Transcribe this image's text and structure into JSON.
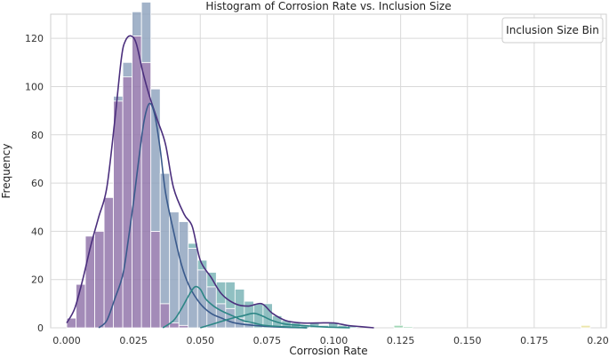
{
  "chart_data": {
    "type": "histogram",
    "title": "Histogram of Corrosion Rate vs. Inclusion Size",
    "xlabel": "Corrosion Rate",
    "ylabel": "Frequency",
    "xlim": [
      -0.006,
      0.202
    ],
    "ylim": [
      0,
      130
    ],
    "x_ticks": [
      0.0,
      0.025,
      0.05,
      0.075,
      0.1,
      0.125,
      0.15,
      0.175,
      0.2
    ],
    "x_tick_labels": [
      "0.000",
      "0.025",
      "0.050",
      "0.075",
      "0.100",
      "0.125",
      "0.150",
      "0.175",
      "0.200"
    ],
    "y_ticks": [
      0,
      20,
      40,
      60,
      80,
      100,
      120
    ],
    "y_tick_labels": [
      "0",
      "20",
      "40",
      "60",
      "80",
      "100",
      "120"
    ],
    "grid": true,
    "legend": {
      "title": "Inclusion Size Bin",
      "placement": "top-right",
      "entries": []
    },
    "bin_width": 0.0035,
    "stacked": true,
    "colors": {
      "purple": "#8f72a8",
      "blue": "#8ea2bd",
      "teal": "#77b2b4",
      "green": "#8fd0a8",
      "yellow": "#e8e09a",
      "kde_purple": "#4b2f7d",
      "kde_blue": "#3a5a8c",
      "kde_teal": "#2d8686"
    },
    "series": [
      {
        "color_key": "purple",
        "kde_color_key": "kde_purple",
        "bins": [
          [
            0.0,
            4
          ],
          [
            0.0035,
            18
          ],
          [
            0.007,
            38
          ],
          [
            0.0105,
            40
          ],
          [
            0.014,
            54
          ],
          [
            0.0175,
            94
          ],
          [
            0.021,
            104
          ],
          [
            0.0245,
            121
          ],
          [
            0.028,
            110
          ],
          [
            0.0315,
            40
          ],
          [
            0.035,
            10
          ],
          [
            0.0385,
            2
          ],
          [
            0.042,
            1
          ]
        ],
        "kde": [
          [
            0.0,
            2
          ],
          [
            0.003,
            8
          ],
          [
            0.006,
            20
          ],
          [
            0.009,
            34
          ],
          [
            0.012,
            46
          ],
          [
            0.015,
            58
          ],
          [
            0.018,
            86
          ],
          [
            0.0205,
            112
          ],
          [
            0.022,
            119
          ],
          [
            0.024,
            121
          ],
          [
            0.026,
            118
          ],
          [
            0.0285,
            106
          ],
          [
            0.031,
            96
          ],
          [
            0.034,
            86
          ],
          [
            0.037,
            76
          ],
          [
            0.04,
            58
          ],
          [
            0.044,
            47
          ],
          [
            0.047,
            42
          ],
          [
            0.05,
            28
          ],
          [
            0.054,
            21
          ],
          [
            0.058,
            14
          ],
          [
            0.063,
            10
          ],
          [
            0.068,
            9
          ],
          [
            0.073,
            10
          ],
          [
            0.077,
            6
          ],
          [
            0.082,
            3
          ],
          [
            0.088,
            2
          ],
          [
            0.094,
            2
          ],
          [
            0.1,
            2
          ],
          [
            0.105,
            1
          ],
          [
            0.11,
            0.5
          ],
          [
            0.115,
            0
          ]
        ]
      },
      {
        "color_key": "blue",
        "kde_color_key": "kde_blue",
        "bins": [
          [
            0.0175,
            2
          ],
          [
            0.021,
            6
          ],
          [
            0.0245,
            10
          ],
          [
            0.028,
            25
          ],
          [
            0.0315,
            59
          ],
          [
            0.035,
            54
          ],
          [
            0.0385,
            46
          ],
          [
            0.042,
            43
          ],
          [
            0.0455,
            33
          ],
          [
            0.049,
            24
          ],
          [
            0.0525,
            17
          ],
          [
            0.056,
            10
          ],
          [
            0.0595,
            8
          ],
          [
            0.063,
            4
          ],
          [
            0.0665,
            2
          ]
        ],
        "kde": [
          [
            0.012,
            0
          ],
          [
            0.015,
            3
          ],
          [
            0.018,
            12
          ],
          [
            0.021,
            22
          ],
          [
            0.023,
            36
          ],
          [
            0.025,
            52
          ],
          [
            0.027,
            70
          ],
          [
            0.029,
            86
          ],
          [
            0.031,
            93
          ],
          [
            0.033,
            88
          ],
          [
            0.035,
            74
          ],
          [
            0.037,
            56
          ],
          [
            0.04,
            40
          ],
          [
            0.043,
            26
          ],
          [
            0.046,
            17
          ],
          [
            0.05,
            10
          ],
          [
            0.054,
            6
          ],
          [
            0.058,
            4
          ],
          [
            0.063,
            2
          ],
          [
            0.07,
            1
          ],
          [
            0.08,
            0.3
          ],
          [
            0.09,
            0
          ]
        ]
      },
      {
        "color_key": "teal",
        "kde_color_key": "kde_teal",
        "bins": [
          [
            0.0455,
            2
          ],
          [
            0.049,
            4
          ],
          [
            0.0525,
            6
          ],
          [
            0.056,
            9
          ],
          [
            0.0595,
            11
          ],
          [
            0.063,
            12
          ],
          [
            0.0665,
            9
          ],
          [
            0.07,
            10
          ],
          [
            0.0735,
            10
          ],
          [
            0.077,
            5
          ],
          [
            0.0805,
            3
          ],
          [
            0.084,
            2
          ],
          [
            0.0875,
            1
          ],
          [
            0.091,
            2
          ],
          [
            0.0945,
            1
          ],
          [
            0.098,
            2
          ],
          [
            0.1015,
            1
          ],
          [
            0.105,
            1
          ]
        ],
        "kde": [
          [
            0.036,
            0
          ],
          [
            0.04,
            3
          ],
          [
            0.043,
            8
          ],
          [
            0.046,
            14
          ],
          [
            0.048,
            17
          ],
          [
            0.05,
            16
          ],
          [
            0.052,
            12
          ],
          [
            0.055,
            9
          ],
          [
            0.058,
            7
          ],
          [
            0.062,
            5
          ],
          [
            0.066,
            3
          ],
          [
            0.07,
            2
          ],
          [
            0.074,
            1
          ],
          [
            0.08,
            0.5
          ],
          [
            0.09,
            0
          ]
        ]
      },
      {
        "color_key": "green",
        "kde_color_key": "kde_teal",
        "bins": [
          [
            0.1225,
            1
          ],
          [
            0.126,
            0.5
          ]
        ],
        "kde": [
          [
            0.05,
            0
          ],
          [
            0.056,
            2
          ],
          [
            0.062,
            4
          ],
          [
            0.066,
            5
          ],
          [
            0.07,
            6
          ],
          [
            0.073,
            5
          ],
          [
            0.077,
            3
          ],
          [
            0.082,
            1.5
          ],
          [
            0.088,
            1
          ],
          [
            0.094,
            0.5
          ],
          [
            0.1,
            0.2
          ],
          [
            0.106,
            0
          ]
        ]
      },
      {
        "color_key": "yellow",
        "kde_color_key": "kde_teal",
        "bins": [
          [
            0.1925,
            1
          ]
        ],
        "kde": []
      }
    ]
  }
}
